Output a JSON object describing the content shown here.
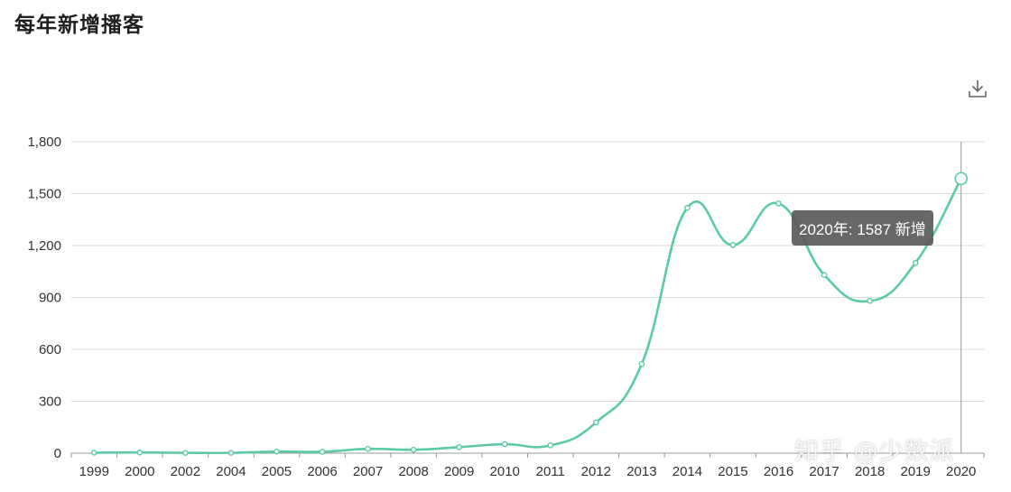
{
  "page": {
    "title": "每年新增播客"
  },
  "toolbar": {
    "download_icon": "download-icon"
  },
  "chart_data": {
    "type": "line",
    "title": "每年新增播客",
    "categories": [
      "1999",
      "2000",
      "2002",
      "2004",
      "2005",
      "2006",
      "2007",
      "2008",
      "2009",
      "2010",
      "2011",
      "2012",
      "2013",
      "2014",
      "2015",
      "2016",
      "2017",
      "2018",
      "2019",
      "2020"
    ],
    "series": [
      {
        "values": [
          3,
          4,
          2,
          2,
          9,
          8,
          25,
          20,
          35,
          52,
          45,
          178,
          515,
          1418,
          1203,
          1443,
          1030,
          880,
          1100,
          1587
        ]
      }
    ],
    "yticks": [
      0,
      300,
      600,
      900,
      1200,
      1500,
      1800
    ],
    "ytick_labels": [
      "0",
      "300",
      "600",
      "900",
      "1,200",
      "1,500",
      "1,800"
    ],
    "ylim": [
      0,
      1800
    ],
    "grid": true,
    "line_color": "#5dcaa6",
    "highlighted_index": 19
  },
  "tooltip": {
    "text": "2020年: 1587 新增"
  },
  "watermark": {
    "text": "知乎 @少数派"
  }
}
